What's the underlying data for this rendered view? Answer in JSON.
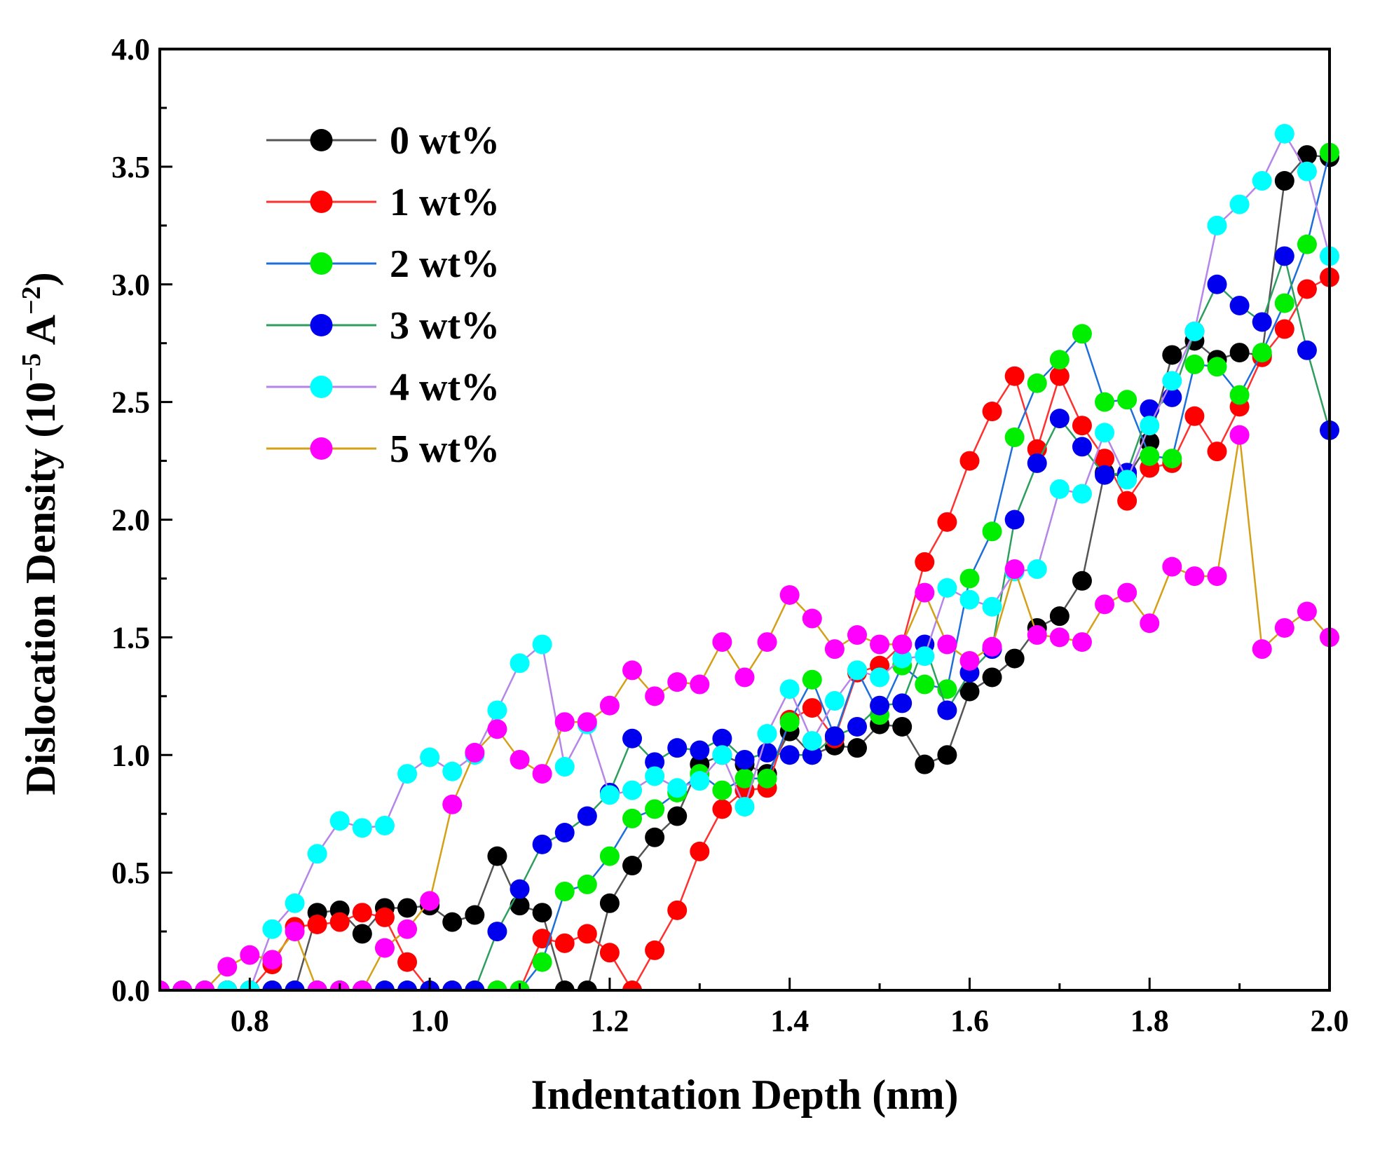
{
  "chart_data": {
    "type": "line",
    "title": "",
    "xlabel": "Indentation Depth (nm)",
    "ylabel_parts": {
      "prefix": "Dislocation Density (10",
      "exp1": "−5",
      "mid": " A",
      "exp2": "−2",
      "suffix": ")"
    },
    "xlim": [
      0.7,
      2.0
    ],
    "ylim": [
      0.0,
      4.0
    ],
    "x_ticks": [
      0.8,
      1.0,
      1.2,
      1.4,
      1.6,
      1.8,
      2.0
    ],
    "x_tick_labels": [
      "0.8",
      "1.0",
      "1.2",
      "1.4",
      "1.6",
      "1.8",
      "2.0"
    ],
    "y_ticks": [
      0.0,
      0.5,
      1.0,
      1.5,
      2.0,
      2.5,
      3.0,
      3.5,
      4.0
    ],
    "y_tick_labels": [
      "0.0",
      "0.5",
      "1.0",
      "1.5",
      "2.0",
      "2.5",
      "3.0",
      "3.5",
      "4.0"
    ],
    "legend_position": "top-left",
    "x": [
      0.7,
      0.725,
      0.75,
      0.775,
      0.8,
      0.825,
      0.85,
      0.875,
      0.9,
      0.925,
      0.95,
      0.975,
      1.0,
      1.025,
      1.05,
      1.075,
      1.1,
      1.125,
      1.15,
      1.175,
      1.2,
      1.225,
      1.25,
      1.275,
      1.3,
      1.325,
      1.35,
      1.375,
      1.4,
      1.425,
      1.45,
      1.475,
      1.5,
      1.525,
      1.55,
      1.575,
      1.6,
      1.625,
      1.65,
      1.675,
      1.7,
      1.725,
      1.75,
      1.775,
      1.8,
      1.825,
      1.85,
      1.875,
      1.9,
      1.925,
      1.95,
      1.975,
      2.0
    ],
    "series": [
      {
        "name": "0 wt%",
        "marker_color": "#000000",
        "line_color": "#555555",
        "values": [
          0,
          0,
          0,
          0,
          0,
          0,
          0,
          0.33,
          0.34,
          0.24,
          0.35,
          0.35,
          0.36,
          0.29,
          0.32,
          0.57,
          0.36,
          0.33,
          0,
          0,
          0.37,
          0.53,
          0.65,
          0.74,
          0.96,
          1.0,
          0.96,
          0.92,
          1.1,
          1.0,
          1.04,
          1.03,
          1.13,
          1.12,
          0.96,
          1.0,
          1.27,
          1.33,
          1.41,
          1.54,
          1.59,
          1.74,
          2.2,
          2.18,
          2.33,
          2.7,
          2.76,
          2.68,
          2.71,
          2.7,
          3.44,
          3.55,
          3.54
        ]
      },
      {
        "name": "1 wt%",
        "marker_color": "#ff0000",
        "line_color": "#ff3030",
        "values": [
          0,
          0,
          0,
          0,
          0,
          0.11,
          0.27,
          0.28,
          0.29,
          0.33,
          0.31,
          0.12,
          0,
          0,
          0,
          0,
          0,
          0.22,
          0.2,
          0.24,
          0.16,
          0,
          0.17,
          0.34,
          0.59,
          0.77,
          0.85,
          0.86,
          1.15,
          1.2,
          1.07,
          1.35,
          1.38,
          1.47,
          1.82,
          1.99,
          2.25,
          2.46,
          2.61,
          2.3,
          2.61,
          2.4,
          2.26,
          2.08,
          2.22,
          2.24,
          2.44,
          2.29,
          2.48,
          2.69,
          2.81,
          2.98,
          3.03
        ]
      },
      {
        "name": "2 wt%",
        "marker_color": "#00ee00",
        "line_color": "#1e6fd9",
        "values": [
          0,
          0,
          0,
          0,
          0,
          0,
          0,
          0,
          0,
          0,
          0,
          0,
          0,
          0,
          0,
          0,
          0,
          0.12,
          0.42,
          0.45,
          0.57,
          0.73,
          0.77,
          0.84,
          0.92,
          0.85,
          0.9,
          0.9,
          1.14,
          1.32,
          1.08,
          1.36,
          1.17,
          1.38,
          1.3,
          1.28,
          1.75,
          1.95,
          2.35,
          2.58,
          2.68,
          2.79,
          2.5,
          2.51,
          2.27,
          2.26,
          2.66,
          2.65,
          2.53,
          2.71,
          2.92,
          3.17,
          3.56
        ]
      },
      {
        "name": "3 wt%",
        "marker_color": "#0000ee",
        "line_color": "#2e9e5e",
        "values": [
          0,
          0,
          0,
          0,
          0,
          0,
          0,
          0,
          0,
          0,
          0,
          0,
          0,
          0,
          0,
          0.25,
          0.43,
          0.62,
          0.67,
          0.74,
          0.84,
          1.07,
          0.97,
          1.03,
          1.02,
          1.07,
          0.98,
          1.01,
          1.0,
          1.0,
          1.08,
          1.12,
          1.21,
          1.22,
          1.47,
          1.19,
          1.35,
          1.45,
          2.0,
          2.24,
          2.43,
          2.31,
          2.19,
          2.2,
          2.47,
          2.52,
          2.8,
          3.0,
          2.91,
          2.84,
          3.12,
          2.72,
          2.38
        ]
      },
      {
        "name": "4 wt%",
        "marker_color": "#00ffff",
        "line_color": "#b585e8",
        "values": [
          0,
          0,
          0,
          0,
          0,
          0.26,
          0.37,
          0.58,
          0.72,
          0.69,
          0.7,
          0.92,
          0.99,
          0.93,
          1.0,
          1.19,
          1.39,
          1.47,
          0.95,
          1.13,
          0.83,
          0.85,
          0.91,
          0.86,
          0.89,
          1.0,
          0.78,
          1.09,
          1.28,
          1.06,
          1.23,
          1.36,
          1.33,
          1.41,
          1.42,
          1.71,
          1.66,
          1.63,
          1.78,
          1.79,
          2.13,
          2.11,
          2.37,
          2.17,
          2.4,
          2.59,
          2.8,
          3.25,
          3.34,
          3.44,
          3.64,
          3.48,
          3.12
        ]
      },
      {
        "name": "5 wt%",
        "marker_color": "#ff00ff",
        "line_color": "#d4a017",
        "values": [
          0,
          0,
          0,
          0.1,
          0.15,
          0.13,
          0.25,
          0,
          0,
          0,
          0.18,
          0.26,
          0.38,
          0.79,
          1.01,
          1.11,
          0.98,
          0.92,
          1.14,
          1.14,
          1.21,
          1.36,
          1.25,
          1.31,
          1.3,
          1.48,
          1.33,
          1.48,
          1.68,
          1.58,
          1.45,
          1.51,
          1.47,
          1.47,
          1.69,
          1.47,
          1.4,
          1.46,
          1.79,
          1.51,
          1.5,
          1.48,
          1.64,
          1.69,
          1.56,
          1.8,
          1.76,
          1.76,
          2.36,
          1.45,
          1.54,
          1.61,
          1.5
        ]
      }
    ]
  }
}
